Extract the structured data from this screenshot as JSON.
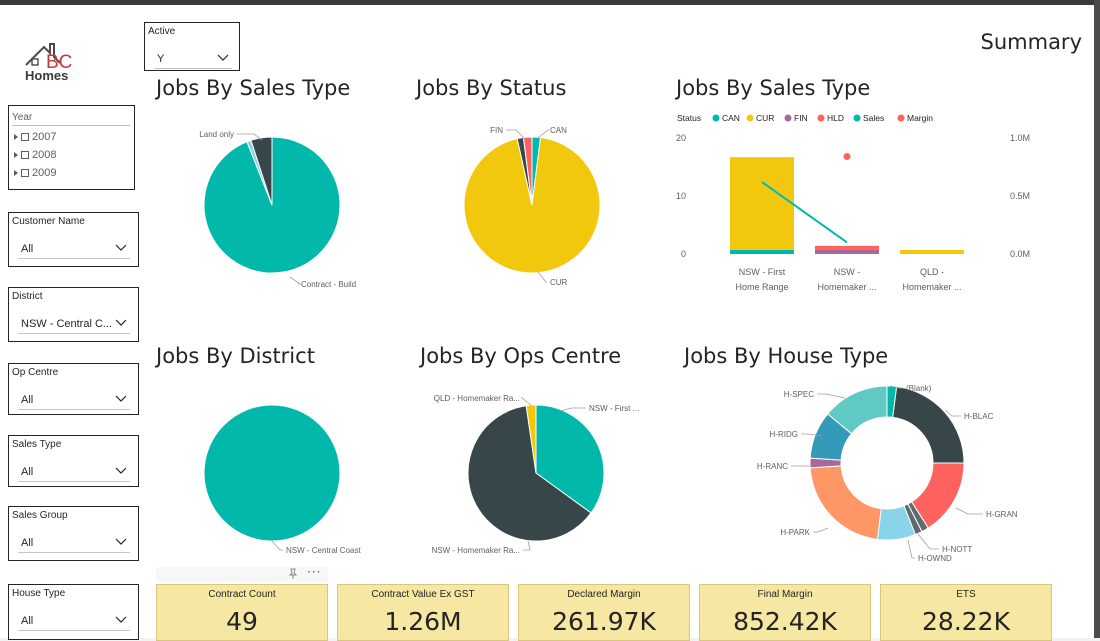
{
  "logo": {
    "letters": "BC",
    "text": "Homes"
  },
  "page_title": "Summary",
  "slicers": {
    "active": {
      "label": "Active",
      "value": "Y"
    },
    "year": {
      "label": "Year",
      "items": [
        "2007",
        "2008",
        "2009"
      ]
    },
    "customer_name": {
      "label": "Customer Name",
      "value": "All"
    },
    "district": {
      "label": "District",
      "value": "NSW - Central C..."
    },
    "op_centre": {
      "label": "Op Centre",
      "value": "All"
    },
    "sales_type": {
      "label": "Sales Type",
      "value": "All"
    },
    "sales_group": {
      "label": "Sales Group",
      "value": "All"
    },
    "house_type": {
      "label": "House Type",
      "value": "All"
    }
  },
  "colors": {
    "teal": "#01b8aa",
    "dark": "#374649",
    "yellow": "#f2c80f",
    "red": "#fd625e",
    "purple": "#a66999",
    "blue": "#3599b8",
    "orange": "#fe9666",
    "lightblue": "#8ad4eb",
    "aqua": "#5fc9c4",
    "kpi_bg": "#f6e7a3"
  },
  "charts": {
    "jobs_by_sales_type_pie": {
      "title": "Jobs By Sales Type"
    },
    "jobs_by_status": {
      "title": "Jobs By Status"
    },
    "jobs_by_sales_type_combo": {
      "title": "Jobs By Sales Type"
    },
    "jobs_by_district": {
      "title": "Jobs By District"
    },
    "jobs_by_ops_centre": {
      "title": "Jobs By Ops Centre"
    },
    "jobs_by_house_type": {
      "title": "Jobs By House Type"
    }
  },
  "chart_data": [
    {
      "id": "sales_type_pie",
      "type": "pie",
      "title": "Jobs By Sales Type",
      "slices": [
        {
          "label": "Contract - Build",
          "value": 94,
          "color": "#01b8aa"
        },
        {
          "label": "Land only",
          "value": 1,
          "color": "#8ad4eb"
        },
        {
          "label": "",
          "value": 5,
          "color": "#374649"
        }
      ]
    },
    {
      "id": "status_pie",
      "type": "pie",
      "title": "Jobs By Status",
      "slices": [
        {
          "label": "CAN",
          "value": 2,
          "color": "#01b8aa"
        },
        {
          "label": "CUR",
          "value": 94.5,
          "color": "#f2c80f"
        },
        {
          "label": "",
          "value": 1.5,
          "color": "#374649"
        },
        {
          "label": "FIN",
          "value": 2,
          "color": "#fd625e"
        }
      ]
    },
    {
      "id": "sales_type_combo",
      "type": "bar",
      "title": "Jobs By Sales Type",
      "legend_title": "Status",
      "legend": [
        {
          "name": "CAN",
          "color": "#01b8aa"
        },
        {
          "name": "CUR",
          "color": "#f2c80f"
        },
        {
          "name": "FIN",
          "color": "#a66999"
        },
        {
          "name": "HLD",
          "color": "#fd625e"
        },
        {
          "name": "Sales",
          "color": "#01b8aa"
        },
        {
          "name": "Margin",
          "color": "#fd625e"
        }
      ],
      "categories": [
        [
          "NSW - First",
          "Home Range"
        ],
        [
          "NSW -",
          "Homemaker ..."
        ],
        [
          "QLD -",
          "Homemaker ..."
        ]
      ],
      "stacks": [
        [
          {
            "series": "CAN",
            "value": 1
          },
          {
            "series": "CUR",
            "value": 16
          }
        ],
        [
          {
            "series": "FIN",
            "value": 1
          },
          {
            "series": "HLD",
            "value": 1
          }
        ],
        [
          {
            "series": "CUR",
            "value": 1
          }
        ]
      ],
      "y_left": {
        "ticks": [
          0,
          10,
          20
        ],
        "max": 22
      },
      "y_right": {
        "ticks": [
          "0.0M",
          "0.5M",
          "1.0M"
        ],
        "max": 1.1
      },
      "sales_line": [
        0.62,
        0.1,
        null
      ],
      "margin_points": [
        null,
        0.84,
        null
      ]
    },
    {
      "id": "district_pie",
      "type": "pie",
      "title": "Jobs By District",
      "slices": [
        {
          "label": "NSW - Central Coast",
          "value": 100,
          "color": "#01b8aa"
        }
      ]
    },
    {
      "id": "ops_centre_pie",
      "type": "pie",
      "title": "Jobs By Ops Centre",
      "slices": [
        {
          "label": "NSW - First ...",
          "value": 35,
          "color": "#01b8aa"
        },
        {
          "label": "NSW - Homemaker Ra...",
          "value": 62.7,
          "color": "#374649"
        },
        {
          "label": "QLD - Homemaker Ra...",
          "value": 2.3,
          "color": "#f2c80f"
        }
      ]
    },
    {
      "id": "house_type_donut",
      "type": "pie",
      "title": "Jobs By House Type",
      "slices": [
        {
          "label": "(Blank)",
          "value": 2,
          "color": "#01b8aa"
        },
        {
          "label": "H-BLAC",
          "value": 23,
          "color": "#374649"
        },
        {
          "label": "H-GRAN",
          "value": 16,
          "color": "#fd625e"
        },
        {
          "label": "",
          "value": 1.5,
          "color": "#5f6b6d"
        },
        {
          "label": "H-NOTT",
          "value": 1.5,
          "color": "#5f6b6d"
        },
        {
          "label": "H-OWND",
          "value": 8,
          "color": "#8ad4eb"
        },
        {
          "label": "H-PARK",
          "value": 22,
          "color": "#fe9666"
        },
        {
          "label": "H-RANC",
          "value": 2,
          "color": "#a66999"
        },
        {
          "label": "H-RIDG",
          "value": 10,
          "color": "#3599b8"
        },
        {
          "label": "H-SPEC",
          "value": 14,
          "color": "#5fc9c4"
        }
      ]
    }
  ],
  "kpis": [
    {
      "title": "Contract Count",
      "value": "49"
    },
    {
      "title": "Contract Value Ex GST",
      "value": "1.26M"
    },
    {
      "title": "Declared Margin",
      "value": "261.97K"
    },
    {
      "title": "Final Margin",
      "value": "852.42K"
    },
    {
      "title": "ETS",
      "value": "28.22K"
    }
  ],
  "visual_header": {
    "pin_icon": "pin-icon",
    "more_icon": "more-options-icon"
  }
}
